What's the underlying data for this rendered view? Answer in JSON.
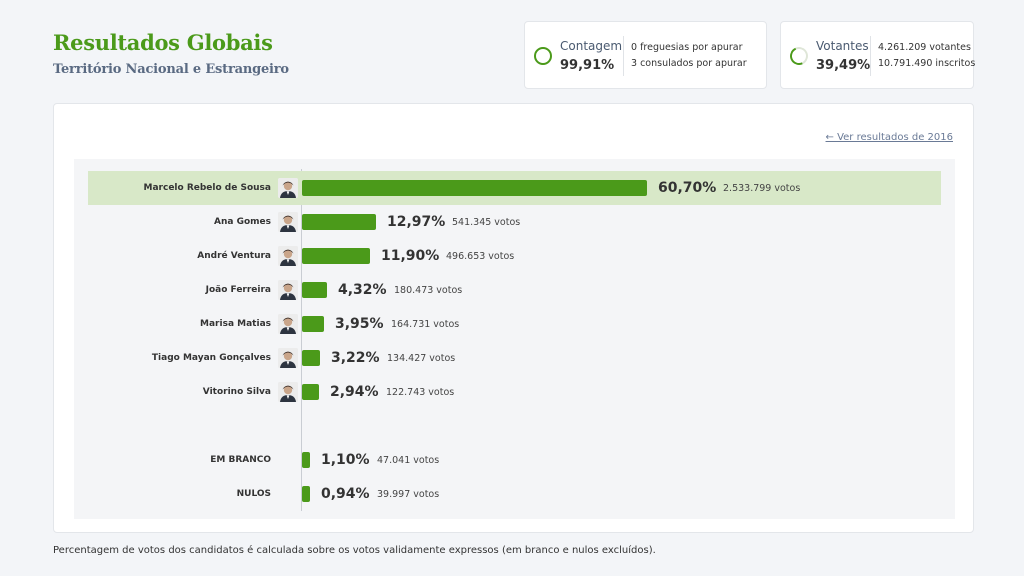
{
  "header": {
    "title": "Resultados Globais",
    "subtitle": "Território Nacional e Estrangeiro"
  },
  "contagem": {
    "label": "Contagem",
    "value": "99,91%",
    "progress": 0.9991,
    "line1": "0 freguesias por apurar",
    "line2": "3 consulados por apurar"
  },
  "votantes": {
    "label": "Votantes",
    "value": "39,49%",
    "progress": 0.3949,
    "line1": "4.261.209 votantes",
    "line2": "10.791.490 inscritos"
  },
  "prev_link": "← Ver resultados de 2016",
  "colors": {
    "accent": "#4b9a1a",
    "highlight": "#d8e8c8"
  },
  "results": [
    {
      "name": "Marcelo Rebelo de Sousa",
      "pct": 60.7,
      "pct_label": "60,70%",
      "votes": "2.533.799 votos",
      "avatar": true,
      "highlight": true
    },
    {
      "name": "Ana Gomes",
      "pct": 12.97,
      "pct_label": "12,97%",
      "votes": "541.345 votos",
      "avatar": true
    },
    {
      "name": "André Ventura",
      "pct": 11.9,
      "pct_label": "11,90%",
      "votes": "496.653 votos",
      "avatar": true
    },
    {
      "name": "João Ferreira",
      "pct": 4.32,
      "pct_label": "4,32%",
      "votes": "180.473 votos",
      "avatar": true
    },
    {
      "name": "Marisa Matias",
      "pct": 3.95,
      "pct_label": "3,95%",
      "votes": "164.731 votos",
      "avatar": true
    },
    {
      "name": "Tiago Mayan Gonçalves",
      "pct": 3.22,
      "pct_label": "3,22%",
      "votes": "134.427 votos",
      "avatar": true
    },
    {
      "name": "Vitorino Silva",
      "pct": 2.94,
      "pct_label": "2,94%",
      "votes": "122.743 votos",
      "avatar": true
    },
    {
      "name": "EM BRANCO",
      "pct": 1.1,
      "pct_label": "1,10%",
      "votes": "47.041 votos",
      "avatar": false
    },
    {
      "name": "NULOS",
      "pct": 0.94,
      "pct_label": "0,94%",
      "votes": "39.997 votos",
      "avatar": false
    }
  ],
  "footnote": "Percentagem de votos dos candidatos é calculada sobre os votos validamente expressos (em branco e nulos excluídos)."
}
